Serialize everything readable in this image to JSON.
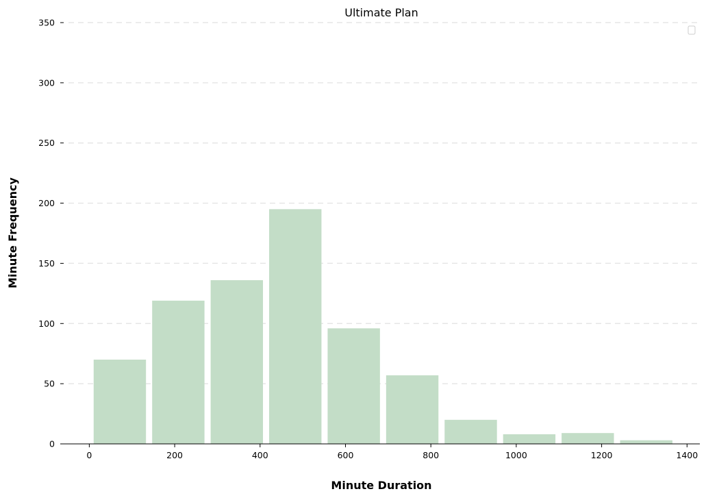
{
  "chart_data": {
    "type": "bar",
    "title": "Ultimate Plan",
    "xlabel": "Minute Duration",
    "ylabel": "Minute Frequency",
    "bins": [
      {
        "start": 3,
        "end": 140,
        "value": 70
      },
      {
        "start": 140,
        "end": 277,
        "value": 119
      },
      {
        "start": 277,
        "end": 414,
        "value": 136
      },
      {
        "start": 414,
        "end": 551,
        "value": 195
      },
      {
        "start": 551,
        "end": 688,
        "value": 96
      },
      {
        "start": 688,
        "end": 825,
        "value": 57
      },
      {
        "start": 825,
        "end": 962,
        "value": 20
      },
      {
        "start": 962,
        "end": 1099,
        "value": 8
      },
      {
        "start": 1099,
        "end": 1236,
        "value": 9
      },
      {
        "start": 1236,
        "end": 1373,
        "value": 3
      }
    ],
    "xlim": [
      -68,
      1430
    ],
    "ylim": [
      0,
      350
    ],
    "xticks": [
      0,
      200,
      400,
      600,
      800,
      1000,
      1200,
      1400
    ],
    "yticks": [
      0,
      50,
      100,
      150,
      200,
      250,
      300,
      350
    ],
    "grid": "y-dashed",
    "bar_color": "#c3ddc7",
    "legend": {
      "placement": "top-right",
      "entries": []
    }
  }
}
